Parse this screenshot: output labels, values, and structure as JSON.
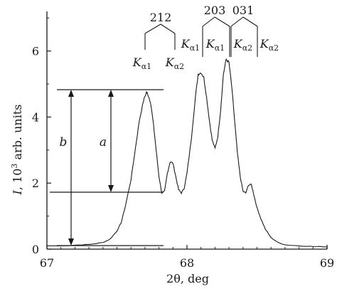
{
  "chart_data": {
    "type": "line",
    "xlabel": "2θ, deg",
    "ylabel_parts": {
      "var": "I",
      "sep": ", 10",
      "exp": "3",
      "rest": " arb. units"
    },
    "xlim": [
      67,
      69
    ],
    "ylim": [
      0,
      7.2
    ],
    "x_ticks": [
      67,
      68,
      69
    ],
    "y_ticks": [
      0,
      2,
      4,
      6
    ],
    "grid": false,
    "legend": "none",
    "series": [
      {
        "x": [
          67.0,
          67.1,
          67.2,
          67.3,
          67.4,
          67.45,
          67.5,
          67.53,
          67.56,
          67.6,
          67.63,
          67.66,
          67.69,
          67.71,
          67.72,
          67.74,
          67.76,
          67.78,
          67.8,
          67.82,
          67.84,
          67.86,
          67.88,
          67.9,
          67.92,
          67.94,
          67.96,
          67.98,
          68.0,
          68.03,
          68.06,
          68.08,
          68.1,
          68.12,
          68.14,
          68.16,
          68.18,
          68.2,
          68.22,
          68.24,
          68.26,
          68.28,
          68.3,
          68.32,
          68.34,
          68.36,
          68.38,
          68.4,
          68.42,
          68.44,
          68.46,
          68.48,
          68.5,
          68.53,
          68.56,
          68.6,
          68.65,
          68.7,
          68.8,
          68.9,
          69.0
        ],
        "y": [
          0.1,
          0.1,
          0.12,
          0.14,
          0.2,
          0.3,
          0.55,
          0.8,
          1.3,
          2.1,
          3.0,
          3.9,
          4.5,
          4.75,
          4.7,
          4.45,
          3.8,
          3.0,
          2.2,
          1.7,
          1.75,
          2.3,
          2.65,
          2.6,
          2.2,
          1.8,
          1.7,
          1.85,
          2.3,
          3.3,
          4.6,
          5.3,
          5.35,
          5.2,
          4.6,
          3.9,
          3.3,
          3.05,
          3.4,
          4.2,
          5.3,
          5.75,
          5.65,
          4.9,
          3.9,
          2.9,
          2.2,
          1.75,
          1.7,
          1.95,
          1.95,
          1.6,
          1.25,
          0.9,
          0.6,
          0.35,
          0.2,
          0.13,
          0.1,
          0.08,
          0.07
        ]
      }
    ],
    "annotations": {
      "letters": [
        "b",
        "a"
      ],
      "groups": [
        {
          "label": "212",
          "k1": "K",
          "k1_sub": "α1",
          "k2": "K",
          "k2_sub": "α2"
        },
        {
          "label": "203",
          "k1": "K",
          "k1_sub": "α1",
          "k2": "K",
          "k2_sub": "α1"
        },
        {
          "label": "031",
          "k1": "K",
          "k1_sub": "α2",
          "k2": "K",
          "k2_sub": "α2"
        }
      ]
    }
  }
}
